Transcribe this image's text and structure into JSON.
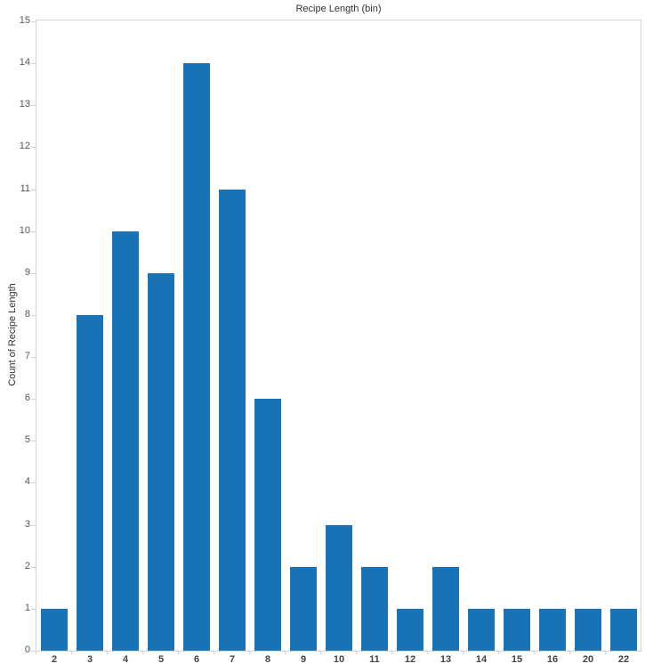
{
  "chart_data": {
    "type": "bar",
    "title": "Recipe Length (bin)",
    "xlabel": "Recipe Length (bin)",
    "ylabel": "Count of Recipe Length",
    "categories": [
      "2",
      "3",
      "4",
      "5",
      "6",
      "7",
      "8",
      "9",
      "10",
      "11",
      "12",
      "13",
      "14",
      "15",
      "16",
      "20",
      "22"
    ],
    "values": [
      1,
      8,
      10,
      9,
      14,
      11,
      6,
      2,
      3,
      2,
      1,
      2,
      1,
      1,
      1,
      1,
      1
    ],
    "ylim": [
      0,
      15
    ],
    "yticks": [
      0,
      1,
      2,
      3,
      4,
      5,
      6,
      7,
      8,
      9,
      10,
      11,
      12,
      13,
      14,
      15
    ],
    "grid": false,
    "legend": null,
    "bar_color": "#1a72b6"
  }
}
